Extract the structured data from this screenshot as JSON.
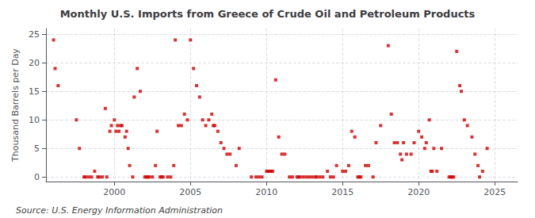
{
  "chart_data": {
    "type": "scatter",
    "title": "Monthly U.S. Imports from Greece of Crude Oil and Petroleum Products",
    "ylabel": "Thousand Barrels per Day",
    "annotations": [
      "Source: U.S. Energy Information Administration"
    ],
    "color": "#CC0000",
    "marker": "square",
    "grid": true,
    "xlim": [
      1995.5,
      2026.5
    ],
    "ylim": [
      -0.8,
      26
    ],
    "xticks": [
      2000,
      2005,
      2010,
      2015,
      2020,
      2025
    ],
    "yticks": [
      0,
      5,
      10,
      15,
      20,
      25
    ],
    "x": [
      1996.0,
      1996.1,
      1996.3,
      1997.5,
      1997.7,
      1998.0,
      1998.1,
      1998.3,
      1998.5,
      1998.7,
      1998.9,
      1999.0,
      1999.2,
      1999.4,
      1999.5,
      1999.7,
      1999.8,
      2000.0,
      2000.1,
      2000.2,
      2000.3,
      2000.4,
      2000.5,
      2000.7,
      2000.8,
      2000.9,
      2001.0,
      2001.2,
      2001.3,
      2001.5,
      2001.7,
      2002.0,
      2002.1,
      2002.2,
      2002.3,
      2002.5,
      2002.7,
      2002.8,
      2003.0,
      2003.1,
      2003.2,
      2003.5,
      2003.7,
      2003.9,
      2004.0,
      2004.2,
      2004.4,
      2004.6,
      2004.8,
      2005.0,
      2005.2,
      2005.4,
      2005.6,
      2005.8,
      2006.0,
      2006.2,
      2006.4,
      2006.5,
      2006.6,
      2006.8,
      2007.0,
      2007.2,
      2007.4,
      2007.6,
      2008.0,
      2008.2,
      2009.0,
      2009.3,
      2009.5,
      2009.7,
      2010.0,
      2010.1,
      2010.2,
      2010.3,
      2010.4,
      2010.6,
      2010.8,
      2011.0,
      2011.2,
      2011.5,
      2011.7,
      2012.0,
      2012.1,
      2012.2,
      2012.4,
      2012.6,
      2012.8,
      2013.0,
      2013.2,
      2013.3,
      2013.5,
      2013.7,
      2014.0,
      2014.2,
      2014.4,
      2014.6,
      2015.0,
      2015.2,
      2015.4,
      2015.6,
      2015.8,
      2016.0,
      2016.1,
      2016.2,
      2016.5,
      2016.7,
      2017.0,
      2017.2,
      2017.5,
      2018.0,
      2018.2,
      2018.4,
      2018.6,
      2018.8,
      2018.9,
      2019.0,
      2019.2,
      2019.5,
      2019.7,
      2020.0,
      2020.2,
      2020.4,
      2020.5,
      2020.7,
      2020.8,
      2020.9,
      2021.0,
      2021.2,
      2021.5,
      2022.0,
      2022.1,
      2022.2,
      2022.3,
      2022.5,
      2022.7,
      2022.8,
      2023.0,
      2023.2,
      2023.5,
      2023.7,
      2023.9,
      2024.0,
      2024.2,
      2024.5
    ],
    "values": [
      24,
      19,
      16,
      10,
      5,
      0,
      0,
      0,
      0,
      1,
      0,
      0,
      0,
      12,
      0,
      8,
      9,
      10,
      8,
      9,
      8,
      9,
      9,
      7,
      8,
      5,
      2,
      0,
      14,
      19,
      15,
      0,
      0,
      0,
      0,
      0,
      2,
      8,
      0,
      0,
      0,
      0,
      0,
      2,
      24,
      9,
      9,
      11,
      10,
      24,
      19,
      16,
      14,
      10,
      9,
      10,
      11,
      9,
      9,
      8,
      6,
      5,
      4,
      4,
      2,
      5,
      0,
      0,
      0,
      0,
      1,
      1,
      1,
      1,
      1,
      17,
      7,
      4,
      4,
      0,
      0,
      0,
      0,
      0,
      0,
      0,
      0,
      0,
      0,
      0,
      0,
      0,
      1,
      0,
      0,
      2,
      1,
      1,
      2,
      8,
      7,
      0,
      0,
      0,
      2,
      2,
      0,
      6,
      9,
      23,
      11,
      6,
      6,
      4,
      3,
      6,
      4,
      4,
      6,
      8,
      7,
      5,
      6,
      10,
      1,
      1,
      5,
      1,
      5,
      0,
      0,
      0,
      0,
      22,
      16,
      15,
      10,
      9,
      7,
      4,
      2,
      0,
      1,
      5
    ]
  }
}
